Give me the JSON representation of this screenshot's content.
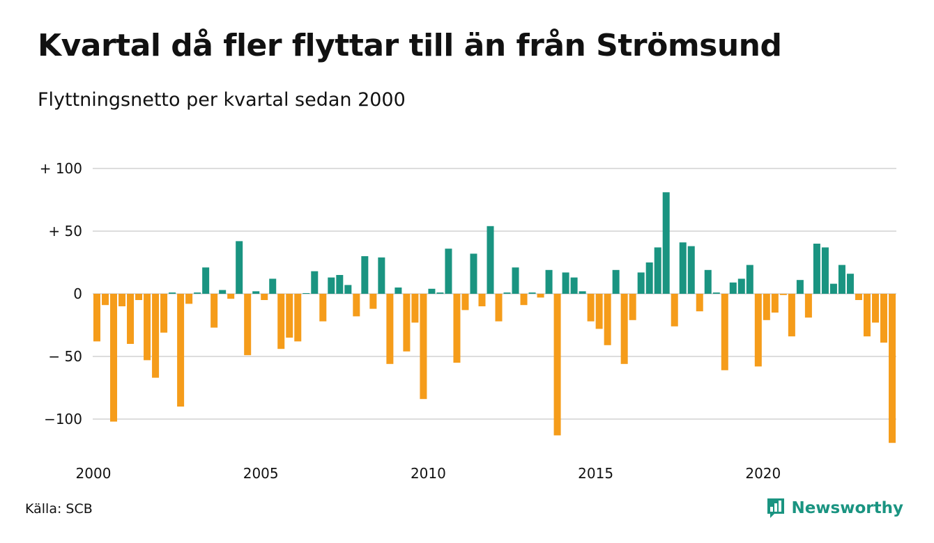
{
  "chart_data": {
    "type": "bar",
    "title": "Kvartal då fler flyttar till än från Strömsund",
    "subtitle": "Flyttningsnetto per kvartal sedan 2000",
    "xlabel": "",
    "ylabel": "",
    "ylim": [
      -120,
      100
    ],
    "y_ticks": [
      {
        "value": 100,
        "label": "+ 100"
      },
      {
        "value": 50,
        "label": "+  50"
      },
      {
        "value": 0,
        "label": "0"
      },
      {
        "value": -50,
        "label": "− 50"
      },
      {
        "value": -100,
        "label": "−100"
      }
    ],
    "x_ticks": [
      "2000",
      "2005",
      "2010",
      "2015",
      "2020"
    ],
    "grid": "horizontal",
    "positive_color": "#1a9481",
    "negative_color": "#f59c1a",
    "start_year": 2000,
    "values": [
      -38,
      -9,
      -102,
      -10,
      -40,
      -5,
      -53,
      -67,
      -31,
      1,
      -90,
      -8,
      1,
      21,
      -27,
      3,
      -4,
      42,
      -49,
      2,
      -5,
      12,
      -44,
      -35,
      -38,
      0,
      18,
      -22,
      13,
      15,
      7,
      -18,
      30,
      -12,
      29,
      -56,
      5,
      -46,
      -23,
      -84,
      4,
      1,
      36,
      -55,
      -13,
      32,
      -10,
      54,
      -22,
      1,
      21,
      -9,
      1,
      -3,
      19,
      -113,
      17,
      13,
      2,
      -22,
      -28,
      -41,
      19,
      -56,
      -21,
      17,
      25,
      37,
      81,
      -26,
      41,
      38,
      -14,
      19,
      1,
      -61,
      9,
      12,
      23,
      -58,
      -21,
      -15,
      -1,
      -34,
      11,
      -19,
      40,
      37,
      8,
      23,
      16,
      -5,
      -34,
      -23,
      -39,
      -119
    ]
  },
  "footer": {
    "source": "Källa: SCB",
    "brand": "Newsworthy"
  },
  "icons": {
    "brand_logo": "newsworthy-logo-icon"
  }
}
